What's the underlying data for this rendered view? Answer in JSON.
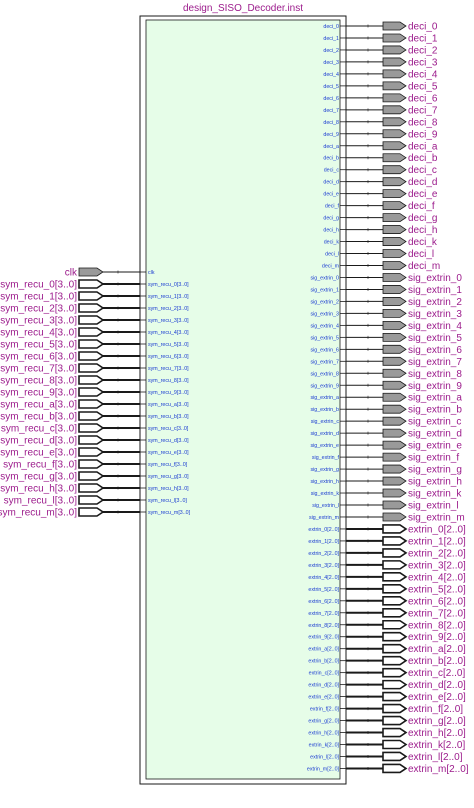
{
  "title": "design_SISO_Decoder.inst",
  "colors": {
    "block_fill": "#e6fde8",
    "block_border": "#1a1a1a",
    "label_purple": "#9c1c8c",
    "port_blue": "#1a3bd1",
    "pin_fill": "#9a9a9a"
  },
  "inputs": [
    {
      "ext": "clk",
      "port": "clk",
      "bus": false
    },
    {
      "ext": "sym_recu_0[3..0]",
      "port": "sym_recu_0[3..0]",
      "bus": true
    },
    {
      "ext": "sym_recu_1[3..0]",
      "port": "sym_recu_1[3..0]",
      "bus": true
    },
    {
      "ext": "sym_recu_2[3..0]",
      "port": "sym_recu_2[3..0]",
      "bus": true
    },
    {
      "ext": "sym_recu_3[3..0]",
      "port": "sym_recu_3[3..0]",
      "bus": true
    },
    {
      "ext": "sym_recu_4[3..0]",
      "port": "sym_recu_4[3..0]",
      "bus": true
    },
    {
      "ext": "sym_recu_5[3..0]",
      "port": "sym_recu_5[3..0]",
      "bus": true
    },
    {
      "ext": "sym_recu_6[3..0]",
      "port": "sym_recu_6[3..0]",
      "bus": true
    },
    {
      "ext": "sym_recu_7[3..0]",
      "port": "sym_recu_7[3..0]",
      "bus": true
    },
    {
      "ext": "sym_recu_8[3..0]",
      "port": "sym_recu_8[3..0]",
      "bus": true
    },
    {
      "ext": "sym_recu_9[3..0]",
      "port": "sym_recu_9[3..0]",
      "bus": true
    },
    {
      "ext": "sym_recu_a[3..0]",
      "port": "sym_recu_a[3..0]",
      "bus": true
    },
    {
      "ext": "sym_recu_b[3..0]",
      "port": "sym_recu_b[3..0]",
      "bus": true
    },
    {
      "ext": "sym_recu_c[3..0]",
      "port": "sym_recu_c[3..0]",
      "bus": true
    },
    {
      "ext": "sym_recu_d[3..0]",
      "port": "sym_recu_d[3..0]",
      "bus": true
    },
    {
      "ext": "sym_recu_e[3..0]",
      "port": "sym_recu_e[3..0]",
      "bus": true
    },
    {
      "ext": "sym_recu_f[3..0]",
      "port": "sym_recu_f[3..0]",
      "bus": true
    },
    {
      "ext": "sym_recu_g[3..0]",
      "port": "sym_recu_g[3..0]",
      "bus": true
    },
    {
      "ext": "sym_recu_h[3..0]",
      "port": "sym_recu_h[3..0]",
      "bus": true
    },
    {
      "ext": "sym_recu_l[3..0]",
      "port": "sym_recu_l[3..0]",
      "bus": true
    },
    {
      "ext": "sym_recu_m[3..0]",
      "port": "sym_recu_m[3..0]",
      "bus": true
    }
  ],
  "outputs": [
    {
      "port": "deci_0",
      "ext": "deci_0",
      "bus": false
    },
    {
      "port": "deci_1",
      "ext": "deci_1",
      "bus": false
    },
    {
      "port": "deci_2",
      "ext": "deci_2",
      "bus": false
    },
    {
      "port": "deci_3",
      "ext": "deci_3",
      "bus": false
    },
    {
      "port": "deci_4",
      "ext": "deci_4",
      "bus": false
    },
    {
      "port": "deci_5",
      "ext": "deci_5",
      "bus": false
    },
    {
      "port": "deci_6",
      "ext": "deci_6",
      "bus": false
    },
    {
      "port": "deci_7",
      "ext": "deci_7",
      "bus": false
    },
    {
      "port": "deci_8",
      "ext": "deci_8",
      "bus": false
    },
    {
      "port": "deci_9",
      "ext": "deci_9",
      "bus": false
    },
    {
      "port": "deci_a",
      "ext": "deci_a",
      "bus": false
    },
    {
      "port": "deci_b",
      "ext": "deci_b",
      "bus": false
    },
    {
      "port": "deci_c",
      "ext": "deci_c",
      "bus": false
    },
    {
      "port": "deci_d",
      "ext": "deci_d",
      "bus": false
    },
    {
      "port": "deci_e",
      "ext": "deci_e",
      "bus": false
    },
    {
      "port": "deci_f",
      "ext": "deci_f",
      "bus": false
    },
    {
      "port": "deci_g",
      "ext": "deci_g",
      "bus": false
    },
    {
      "port": "deci_h",
      "ext": "deci_h",
      "bus": false
    },
    {
      "port": "deci_k",
      "ext": "deci_k",
      "bus": false
    },
    {
      "port": "deci_l",
      "ext": "deci_l",
      "bus": false
    },
    {
      "port": "deci_m",
      "ext": "deci_m",
      "bus": false
    },
    {
      "port": "sig_extrin_0",
      "ext": "sig_extrin_0",
      "bus": false
    },
    {
      "port": "sig_extrin_1",
      "ext": "sig_extrin_1",
      "bus": false
    },
    {
      "port": "sig_extrin_2",
      "ext": "sig_extrin_2",
      "bus": false
    },
    {
      "port": "sig_extrin_3",
      "ext": "sig_extrin_3",
      "bus": false
    },
    {
      "port": "sig_extrin_4",
      "ext": "sig_extrin_4",
      "bus": false
    },
    {
      "port": "sig_extrin_5",
      "ext": "sig_extrin_5",
      "bus": false
    },
    {
      "port": "sig_extrin_6",
      "ext": "sig_extrin_6",
      "bus": false
    },
    {
      "port": "sig_extrin_7",
      "ext": "sig_extrin_7",
      "bus": false
    },
    {
      "port": "sig_extrin_8",
      "ext": "sig_extrin_8",
      "bus": false
    },
    {
      "port": "sig_extrin_9",
      "ext": "sig_extrin_9",
      "bus": false
    },
    {
      "port": "sig_extrin_a",
      "ext": "sig_extrin_a",
      "bus": false
    },
    {
      "port": "sig_extrin_b",
      "ext": "sig_extrin_b",
      "bus": false
    },
    {
      "port": "sig_extrin_c",
      "ext": "sig_extrin_c",
      "bus": false
    },
    {
      "port": "sig_extrin_d",
      "ext": "sig_extrin_d",
      "bus": false
    },
    {
      "port": "sig_extrin_e",
      "ext": "sig_extrin_e",
      "bus": false
    },
    {
      "port": "sig_extrin_f",
      "ext": "sig_extrin_f",
      "bus": false
    },
    {
      "port": "sig_extrin_g",
      "ext": "sig_extrin_g",
      "bus": false
    },
    {
      "port": "sig_extrin_h",
      "ext": "sig_extrin_h",
      "bus": false
    },
    {
      "port": "sig_extrin_k",
      "ext": "sig_extrin_k",
      "bus": false
    },
    {
      "port": "sig_extrin_l",
      "ext": "sig_extrin_l",
      "bus": false
    },
    {
      "port": "sig_extrin_m",
      "ext": "sig_extrin_m",
      "bus": false
    },
    {
      "port": "extrin_0[2..0]",
      "ext": "extrin_0[2..0]",
      "bus": true
    },
    {
      "port": "extrin_1[2..0]",
      "ext": "extrin_1[2..0]",
      "bus": true
    },
    {
      "port": "extrin_2[2..0]",
      "ext": "extrin_2[2..0]",
      "bus": true
    },
    {
      "port": "extrin_3[2..0]",
      "ext": "extrin_3[2..0]",
      "bus": true
    },
    {
      "port": "extrin_4[2..0]",
      "ext": "extrin_4[2..0]",
      "bus": true
    },
    {
      "port": "extrin_5[2..0]",
      "ext": "extrin_5[2..0]",
      "bus": true
    },
    {
      "port": "extrin_6[2..0]",
      "ext": "extrin_6[2..0]",
      "bus": true
    },
    {
      "port": "extrin_7[2..0]",
      "ext": "extrin_7[2..0]",
      "bus": true
    },
    {
      "port": "extrin_8[2..0]",
      "ext": "extrin_8[2..0]",
      "bus": true
    },
    {
      "port": "extrin_9[2..0]",
      "ext": "extrin_9[2..0]",
      "bus": true
    },
    {
      "port": "extrin_a[2..0]",
      "ext": "extrin_a[2..0]",
      "bus": true
    },
    {
      "port": "extrin_b[2..0]",
      "ext": "extrin_b[2..0]",
      "bus": true
    },
    {
      "port": "extrin_c[2..0]",
      "ext": "extrin_c[2..0]",
      "bus": true
    },
    {
      "port": "extrin_d[2..0]",
      "ext": "extrin_d[2..0]",
      "bus": true
    },
    {
      "port": "extrin_e[2..0]",
      "ext": "extrin_e[2..0]",
      "bus": true
    },
    {
      "port": "extrin_f[2..0]",
      "ext": "extrin_f[2..0]",
      "bus": true
    },
    {
      "port": "extrin_g[2..0]",
      "ext": "extrin_g[2..0]",
      "bus": true
    },
    {
      "port": "extrin_h[2..0]",
      "ext": "extrin_h[2..0]",
      "bus": true
    },
    {
      "port": "extrin_k[2..0]",
      "ext": "extrin_k[2..0]",
      "bus": true
    },
    {
      "port": "extrin_l[2..0]",
      "ext": "extrin_l[2..0]",
      "bus": true
    },
    {
      "port": "extrin_m[2..0]",
      "ext": "extrin_m[2..0]",
      "bus": true
    }
  ]
}
